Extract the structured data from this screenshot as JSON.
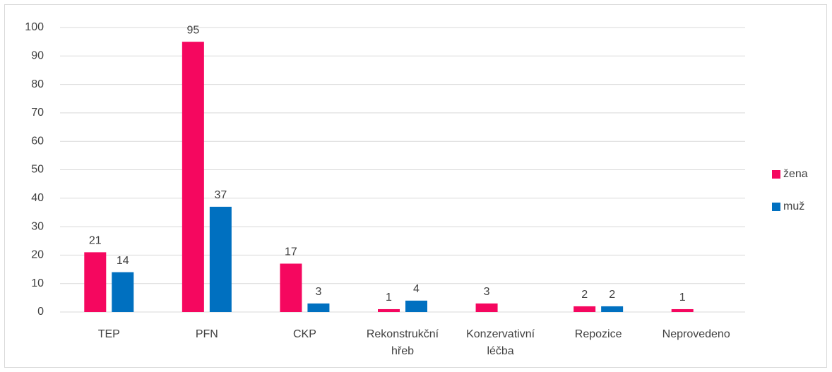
{
  "chart_data": {
    "type": "bar",
    "categories": [
      "TEP",
      "PFN",
      "CKP",
      "Rekonstrukční hřeb",
      "Konzervativní léčba",
      "Repozice",
      "Neprovedeno"
    ],
    "series": [
      {
        "name": "žena",
        "color": "#f5075f",
        "values": [
          21,
          95,
          17,
          1,
          3,
          2,
          1
        ]
      },
      {
        "name": "muž",
        "color": "#0070c0",
        "values": [
          14,
          37,
          3,
          4,
          null,
          2,
          null
        ]
      }
    ],
    "ylim": [
      0,
      100
    ],
    "yticks": [
      0,
      10,
      20,
      30,
      40,
      50,
      60,
      70,
      80,
      90,
      100
    ],
    "grid": true,
    "legend": "right"
  }
}
